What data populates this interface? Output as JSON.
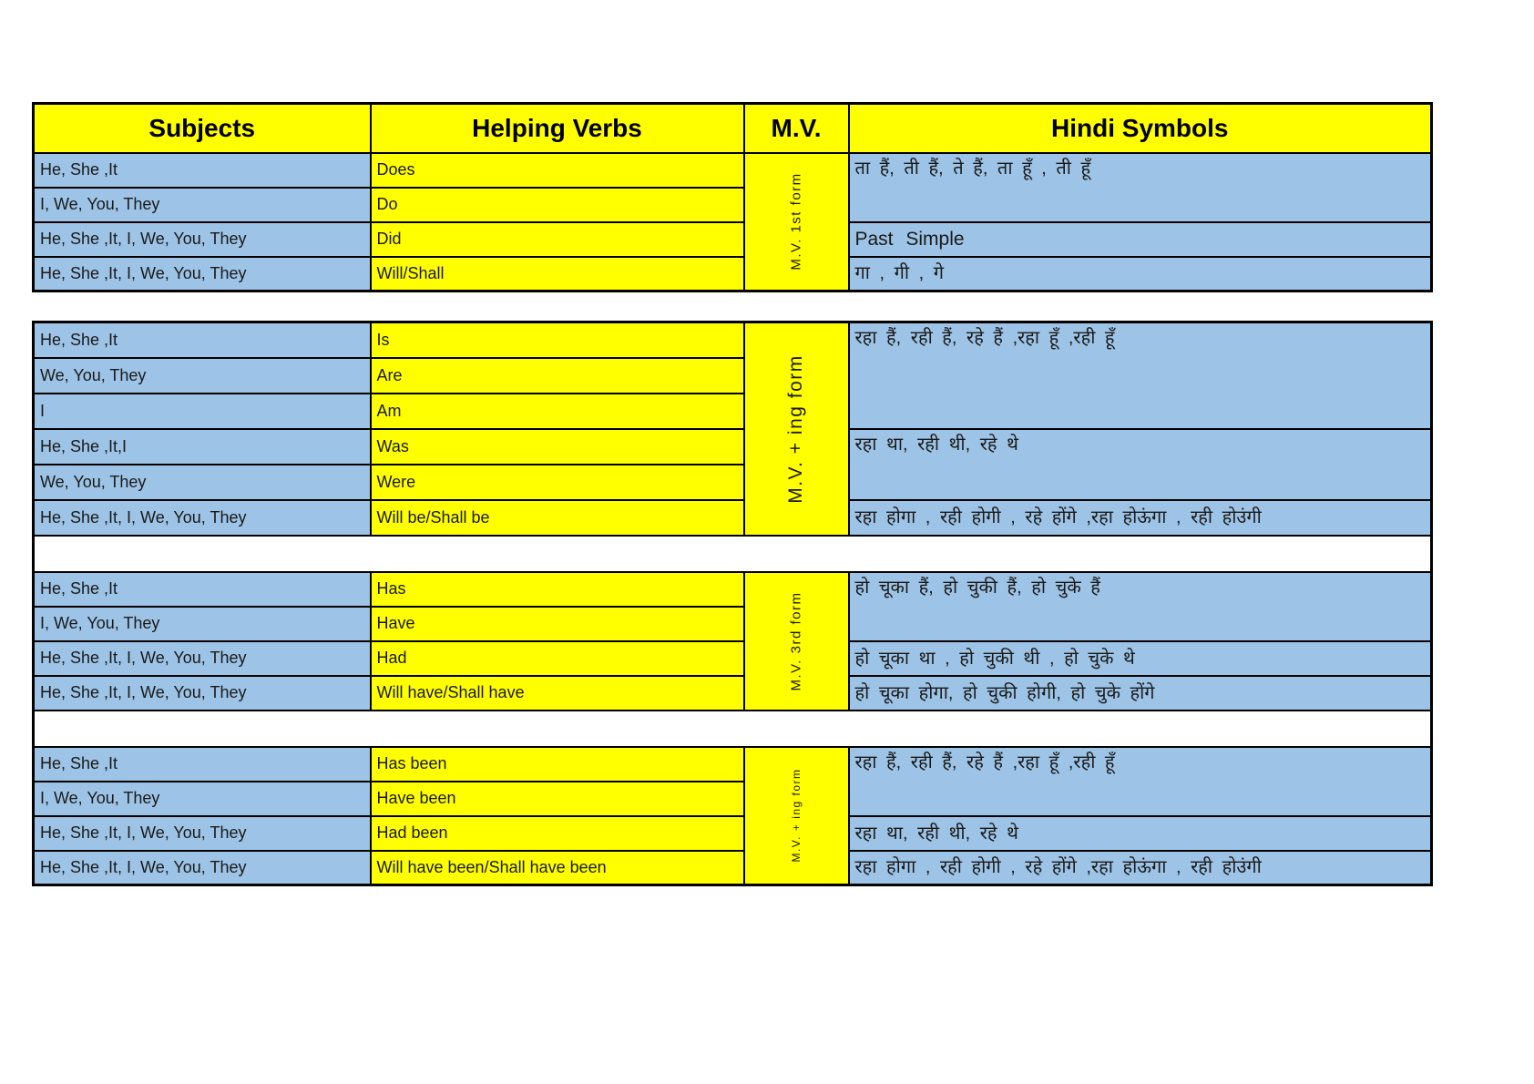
{
  "colors": {
    "yellow": "#FFFF00",
    "blue": "#9DC3E6",
    "border": "#000000",
    "text": "#1A1A1A"
  },
  "header": {
    "subjects": "Subjects",
    "helping_verbs": "Helping Verbs",
    "mv": "M.V.",
    "hindi_symbols": "Hindi Symbols"
  },
  "section1": {
    "mv_label": "M.V. 1st form",
    "rows": [
      {
        "subject": "He, She ,It",
        "verb": "Does"
      },
      {
        "subject": "I, We, You, They",
        "verb": "Do"
      },
      {
        "subject": "He, She ,It, I, We, You, They",
        "verb": "Did"
      },
      {
        "subject": "He, She ,It, I, We, You, They",
        "verb": "Will/Shall"
      }
    ],
    "hindi": [
      "ता हैं, ती हैं, ते हैं, ता हूँ , ती हूँ",
      "Past Simple",
      "गा , गी , गे"
    ]
  },
  "section2": {
    "mv_label": "M.V. + ing form",
    "rows": [
      {
        "subject": "He, She ,It",
        "verb": "Is"
      },
      {
        "subject": "We, You, They",
        "verb": "Are"
      },
      {
        "subject": "I",
        "verb": "Am"
      },
      {
        "subject": "He, She ,It,I",
        "verb": "Was"
      },
      {
        "subject": "We, You, They",
        "verb": "Were"
      },
      {
        "subject": "He, She ,It, I, We, You, They",
        "verb": "Will be/Shall be"
      }
    ],
    "hindi": [
      "रहा हैं, रही हैं, रहे हैं ,रहा हूँ ,रही हूँ",
      "रहा था, रही थी, रहे थे",
      "रहा होगा , रही होगी , रहे होंगे ,रहा होऊंगा , रही होउंगी"
    ]
  },
  "section3": {
    "mv_label": "M.V. 3rd form",
    "rows": [
      {
        "subject": "He, She ,It",
        "verb": "Has"
      },
      {
        "subject": "I, We, You, They",
        "verb": "Have"
      },
      {
        "subject": "He, She ,It, I, We, You, They",
        "verb": "Had"
      },
      {
        "subject": "He, She ,It, I, We, You, They",
        "verb": "Will have/Shall have"
      }
    ],
    "hindi": [
      "हो चूका हैं, हो चुकी हैं, हो चुके हैं",
      "हो चूका था , हो चुकी थी , हो चुके थे",
      "हो चूका होगा, हो चुकी होगी, हो चुके होंगे"
    ]
  },
  "section4": {
    "mv_label": "M.V. + ing form",
    "rows": [
      {
        "subject": "He, She ,It",
        "verb": "Has been"
      },
      {
        "subject": "I, We, You, They",
        "verb": "Have been"
      },
      {
        "subject": "He, She ,It, I, We, You, They",
        "verb": "Had been"
      },
      {
        "subject": "He, She ,It, I, We, You, They",
        "verb": "Will have been/Shall have been"
      }
    ],
    "hindi": [
      "रहा हैं, रही हैं, रहे हैं ,रहा हूँ ,रही हूँ",
      "रहा था, रही थी, रहे थे",
      "रहा होगा , रही होगी , रहे होंगे ,रहा होऊंगा , रही होउंगी"
    ]
  }
}
